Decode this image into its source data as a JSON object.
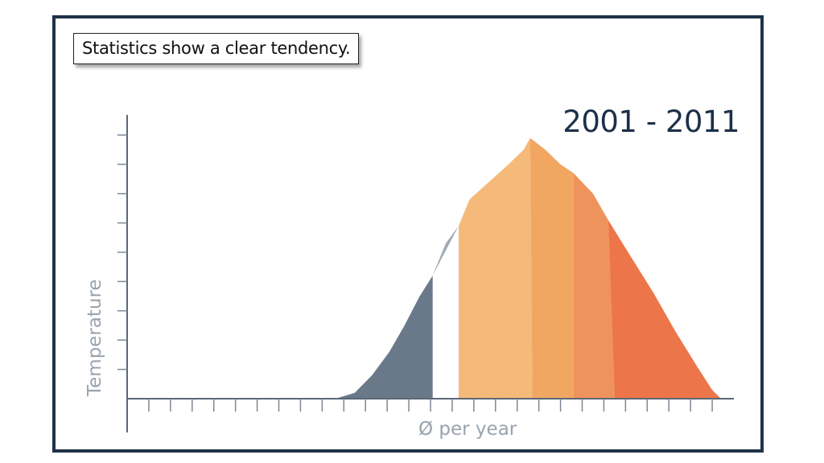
{
  "caption": "Statistics show a clear tendency.",
  "period": "2001 - 2011",
  "chart_data": {
    "type": "area",
    "title": "",
    "xlabel": "Ø per year",
    "ylabel": "Temperature",
    "x_ticks": 28,
    "y_ticks": 9,
    "xlim": [
      0,
      28
    ],
    "ylim": [
      0,
      9
    ],
    "segments": [
      {
        "color": "#5d6e80",
        "points": [
          [
            9.6,
            0
          ],
          [
            10.5,
            0.2
          ],
          [
            11.3,
            0.8
          ],
          [
            12.1,
            1.6
          ],
          [
            12.8,
            2.5
          ],
          [
            13.5,
            3.5
          ],
          [
            14.1,
            4.2
          ],
          [
            14.1,
            0
          ]
        ]
      },
      {
        "color": "#9aa3ad",
        "points": [
          [
            14.1,
            4.2
          ],
          [
            14.7,
            5.3
          ],
          [
            15.3,
            5.9
          ],
          [
            15.3,
            5.9
          ]
        ]
      },
      {
        "color": "#f4b46e",
        "points": [
          [
            15.3,
            0
          ],
          [
            15.3,
            5.9
          ],
          [
            15.8,
            6.8
          ],
          [
            16.7,
            7.4
          ],
          [
            17.6,
            8.0
          ],
          [
            18.3,
            8.5
          ],
          [
            18.6,
            8.9
          ],
          [
            18.7,
            0
          ]
        ]
      },
      {
        "color": "#f0a055",
        "points": [
          [
            18.7,
            0
          ],
          [
            18.6,
            8.9
          ],
          [
            19.3,
            8.5
          ],
          [
            20.0,
            8.0
          ],
          [
            20.6,
            7.7
          ],
          [
            20.6,
            0
          ]
        ]
      },
      {
        "color": "#ee8a4e",
        "points": [
          [
            20.6,
            0
          ],
          [
            20.6,
            7.7
          ],
          [
            21.5,
            7.0
          ],
          [
            22.2,
            6.1
          ],
          [
            22.5,
            0
          ]
        ]
      },
      {
        "color": "#ea6a3a",
        "points": [
          [
            22.5,
            0
          ],
          [
            22.2,
            6.1
          ],
          [
            23.2,
            4.9
          ],
          [
            24.3,
            3.6
          ],
          [
            25.3,
            2.3
          ],
          [
            26.3,
            1.1
          ],
          [
            27.0,
            0.3
          ],
          [
            27.4,
            0
          ]
        ]
      }
    ]
  }
}
